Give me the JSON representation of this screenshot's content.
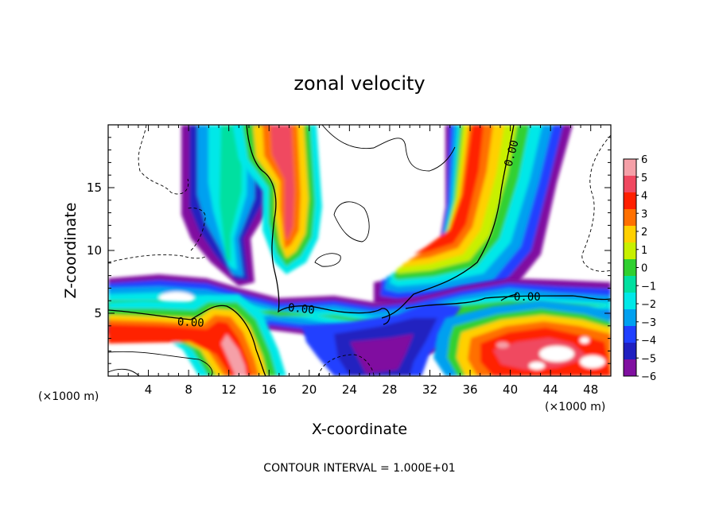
{
  "chart_data": {
    "type": "heatmap",
    "title": "zonal velocity",
    "xlabel": "X-coordinate",
    "ylabel": "Z-coordinate",
    "x_unit_left": "(×1000 m)",
    "x_unit_right": "(×1000 m)",
    "xlim": [
      0,
      50
    ],
    "ylim": [
      0,
      20
    ],
    "x_ticks": [
      4,
      8,
      12,
      16,
      20,
      24,
      28,
      32,
      36,
      40,
      44,
      48
    ],
    "y_ticks": [
      5,
      10,
      15
    ],
    "colorbar": {
      "levels": [
        6,
        5,
        4,
        3,
        2,
        1,
        0,
        -1,
        -2,
        -3,
        -4,
        -5,
        -6
      ],
      "labels": [
        "6",
        "5",
        "4",
        "3",
        "2",
        "1",
        "0",
        "−1",
        "−2",
        "−3",
        "−4",
        "−5",
        "−6"
      ],
      "colors": [
        "#f5a0a8",
        "#f04860",
        "#ff2000",
        "#ff7000",
        "#ffd000",
        "#c8f000",
        "#30d030",
        "#00e0a0",
        "#00e8e8",
        "#00a0f0",
        "#2040ff",
        "#2020c0",
        "#8010a0"
      ]
    },
    "contour_labels": [
      "0.00",
      "0.00",
      "0.00",
      "0.00"
    ],
    "footer": "CONTOUR INTERVAL = 1.000E+01",
    "grid": false
  }
}
